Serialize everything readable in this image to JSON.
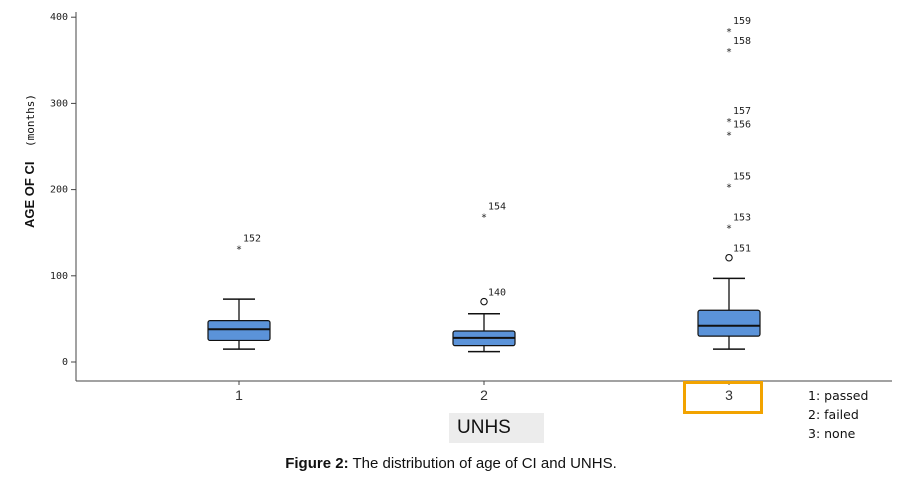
{
  "chart_data": {
    "type": "boxplot",
    "ylabel_main": "AGE OF CI",
    "ylabel_unit": "(months)",
    "xlabel": "UNHS",
    "ylim": [
      -10,
      405
    ],
    "yticks": [
      0,
      100,
      200,
      300,
      400
    ],
    "categories": [
      "1",
      "2",
      "3"
    ],
    "box_color": "#5b93d9",
    "boxes": [
      {
        "category": "1",
        "whisker_low": 15,
        "q1": 25,
        "median": 38,
        "q3": 48,
        "whisker_high": 73,
        "outliers": [
          {
            "value": 133,
            "marker": "star",
            "label": "152"
          }
        ]
      },
      {
        "category": "2",
        "whisker_low": 12,
        "q1": 19,
        "median": 28,
        "q3": 36,
        "whisker_high": 56,
        "outliers": [
          {
            "value": 70,
            "marker": "circle",
            "label": "140"
          },
          {
            "value": 170,
            "marker": "star",
            "label": "154"
          }
        ]
      },
      {
        "category": "3",
        "whisker_low": 15,
        "q1": 30,
        "median": 42,
        "q3": 60,
        "whisker_high": 97,
        "outliers": [
          {
            "value": 121,
            "marker": "circle",
            "label": "151"
          },
          {
            "value": 157,
            "marker": "star",
            "label": "153"
          },
          {
            "value": 205,
            "marker": "star",
            "label": "155"
          },
          {
            "value": 265,
            "marker": "star",
            "label": "156"
          },
          {
            "value": 281,
            "marker": "star",
            "label": "157"
          },
          {
            "value": 362,
            "marker": "star",
            "label": "158"
          },
          {
            "value": 385,
            "marker": "star",
            "label": "159"
          }
        ]
      }
    ],
    "highlighted_category": "3"
  },
  "legend": [
    "1: passed",
    "2: failed",
    "3: none"
  ],
  "caption": {
    "prefix": "Figure 2:",
    "text": " The distribution of age of CI and UNHS."
  }
}
